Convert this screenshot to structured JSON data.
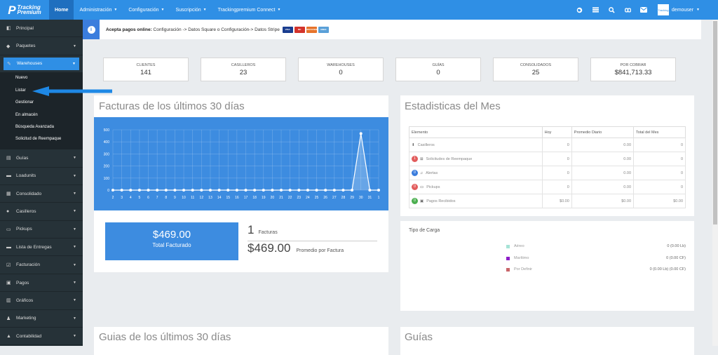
{
  "topbar": {
    "logo_line1": "Tracking",
    "logo_line2": "Premium",
    "nav": [
      {
        "label": "Home",
        "active": true,
        "caret": false
      },
      {
        "label": "Administración",
        "caret": true
      },
      {
        "label": "Configuración",
        "caret": true
      },
      {
        "label": "Suscripción",
        "caret": true
      },
      {
        "label": "Trackingpremium Connect",
        "caret": true
      }
    ],
    "icons": [
      "globe-icon",
      "list-icon",
      "search-icon",
      "link-icon",
      "mail-icon"
    ],
    "user": {
      "avatar_text": "Tracking",
      "name": "demouser"
    }
  },
  "sidebar": {
    "items": [
      {
        "label": "Principal",
        "icon": "dashboard-icon",
        "arrow": false
      },
      {
        "label": "Paquetes",
        "icon": "tag-icon",
        "arrow": true
      },
      {
        "label": "Warehouses",
        "icon": "edit-icon",
        "arrow": true,
        "active": true
      },
      {
        "label": "Guías",
        "icon": "book-icon",
        "arrow": true
      },
      {
        "label": "Loadunits",
        "icon": "truck-icon",
        "arrow": true
      },
      {
        "label": "Consolidado",
        "icon": "grid-icon",
        "arrow": true
      },
      {
        "label": "Casilleros",
        "icon": "map-marker-icon",
        "arrow": true
      },
      {
        "label": "Pickups",
        "icon": "car-icon",
        "arrow": true
      },
      {
        "label": "Lista de Entregas",
        "icon": "truck-icon",
        "arrow": true
      },
      {
        "label": "Facturación",
        "icon": "check-icon",
        "arrow": true
      },
      {
        "label": "Pagos",
        "icon": "money-icon",
        "arrow": true
      },
      {
        "label": "Gráficos",
        "icon": "chart-icon",
        "arrow": true
      },
      {
        "label": "Marketing",
        "icon": "users-icon",
        "arrow": true
      },
      {
        "label": "Contabilidad",
        "icon": "bank-icon",
        "arrow": true
      }
    ],
    "warehouse_sub": [
      "Nuevo",
      "Listar",
      "Gestionar",
      "En almacén",
      "Búsqueda Avanzada",
      "Solicitud de Reempaque"
    ]
  },
  "notice": {
    "bold": "Acepta pagos online:",
    "text": " Configuración -> Datos Square o Configuración-> Datos Stripe",
    "cards": [
      {
        "label": "VISA",
        "color": "#1a3d8f"
      },
      {
        "label": "MC",
        "color": "#d3332b"
      },
      {
        "label": "DISCOVER",
        "color": "#e7742b"
      },
      {
        "label": "AMEX",
        "color": "#5aa0d8"
      }
    ]
  },
  "stats": [
    {
      "label": "CLIENTES",
      "value": "141"
    },
    {
      "label": "CASILLEROS",
      "value": "23"
    },
    {
      "label": "WAREHOUSES",
      "value": "0"
    },
    {
      "label": "GUÍAS",
      "value": "0"
    },
    {
      "label": "CONSOLIDADOS",
      "value": "25"
    },
    {
      "label": "POR COBRAR",
      "value": "$841,713.33"
    }
  ],
  "facturas_panel": {
    "title": "Facturas de los últimos 30 días",
    "total_value": "$469.00",
    "total_label": "Total Facturado",
    "count": "1",
    "count_label": "Facturas",
    "avg": "$469.00",
    "avg_label": "Promedio por Factura"
  },
  "chart_data": {
    "type": "line",
    "title": "",
    "xlabel": "",
    "ylabel": "",
    "categories": [
      "2",
      "3",
      "4",
      "5",
      "6",
      "7",
      "8",
      "9",
      "10",
      "11",
      "12",
      "13",
      "14",
      "15",
      "16",
      "17",
      "18",
      "19",
      "20",
      "21",
      "22",
      "23",
      "24",
      "25",
      "26",
      "27",
      "28",
      "29",
      "30",
      "31",
      "1"
    ],
    "values": [
      0,
      0,
      0,
      0,
      0,
      0,
      0,
      0,
      0,
      0,
      0,
      0,
      0,
      0,
      0,
      0,
      0,
      0,
      0,
      0,
      0,
      0,
      0,
      0,
      0,
      0,
      0,
      0,
      469,
      0,
      0
    ],
    "yticks": [
      "500",
      "400",
      "300",
      "200",
      "100",
      "0"
    ],
    "ylim": [
      0,
      500
    ],
    "grid": true,
    "legend": "none",
    "colors": {
      "background": "#3d8ce0",
      "line": "#ffffff"
    }
  },
  "estadisticas": {
    "title": "Estadisticas del Mes",
    "headers": [
      "Elemento",
      "Hoy",
      "Promedio Diario",
      "Total del Mes"
    ],
    "rows": [
      {
        "badge": "",
        "badge_color": "",
        "icon": "download-icon",
        "label": "Casilleros",
        "hoy": "0",
        "prom": "0.00",
        "total": "0"
      },
      {
        "badge": "1",
        "badge_color": "#e25c5c",
        "icon": "box-icon",
        "label": "Solicitudes de Reempaque",
        "hoy": "0",
        "prom": "0.00",
        "total": "0"
      },
      {
        "badge": "0",
        "badge_color": "#3b7ddd",
        "icon": "bell-icon",
        "label": "Alertas",
        "hoy": "0",
        "prom": "0.00",
        "total": "0"
      },
      {
        "badge": "0",
        "badge_color": "#e25c5c",
        "icon": "car-icon",
        "label": "Pickups",
        "hoy": "0",
        "prom": "0.00",
        "total": "0"
      },
      {
        "badge": "0",
        "badge_color": "#4caf50",
        "icon": "money-icon",
        "label": "Pagos Recibidos",
        "hoy": "$0.00",
        "prom": "$0.00",
        "total": "$0.00"
      }
    ]
  },
  "carga": {
    "title": "Tipo de Carga",
    "rows": [
      {
        "label": "Aéreo",
        "value": "0 (0.00 Lb)",
        "color": "#a6e3d6"
      },
      {
        "label": "Marítimo",
        "value": "0 (0.00 CF)",
        "color": "#8e1ec8"
      },
      {
        "label": "Por Definir",
        "value": "0 (0.00 Lb) (0.00 CF)",
        "color": "#c9656a"
      }
    ]
  },
  "bottom": {
    "guias30_title": "Guias de los últimos 30 días",
    "guias_title": "Guías"
  }
}
